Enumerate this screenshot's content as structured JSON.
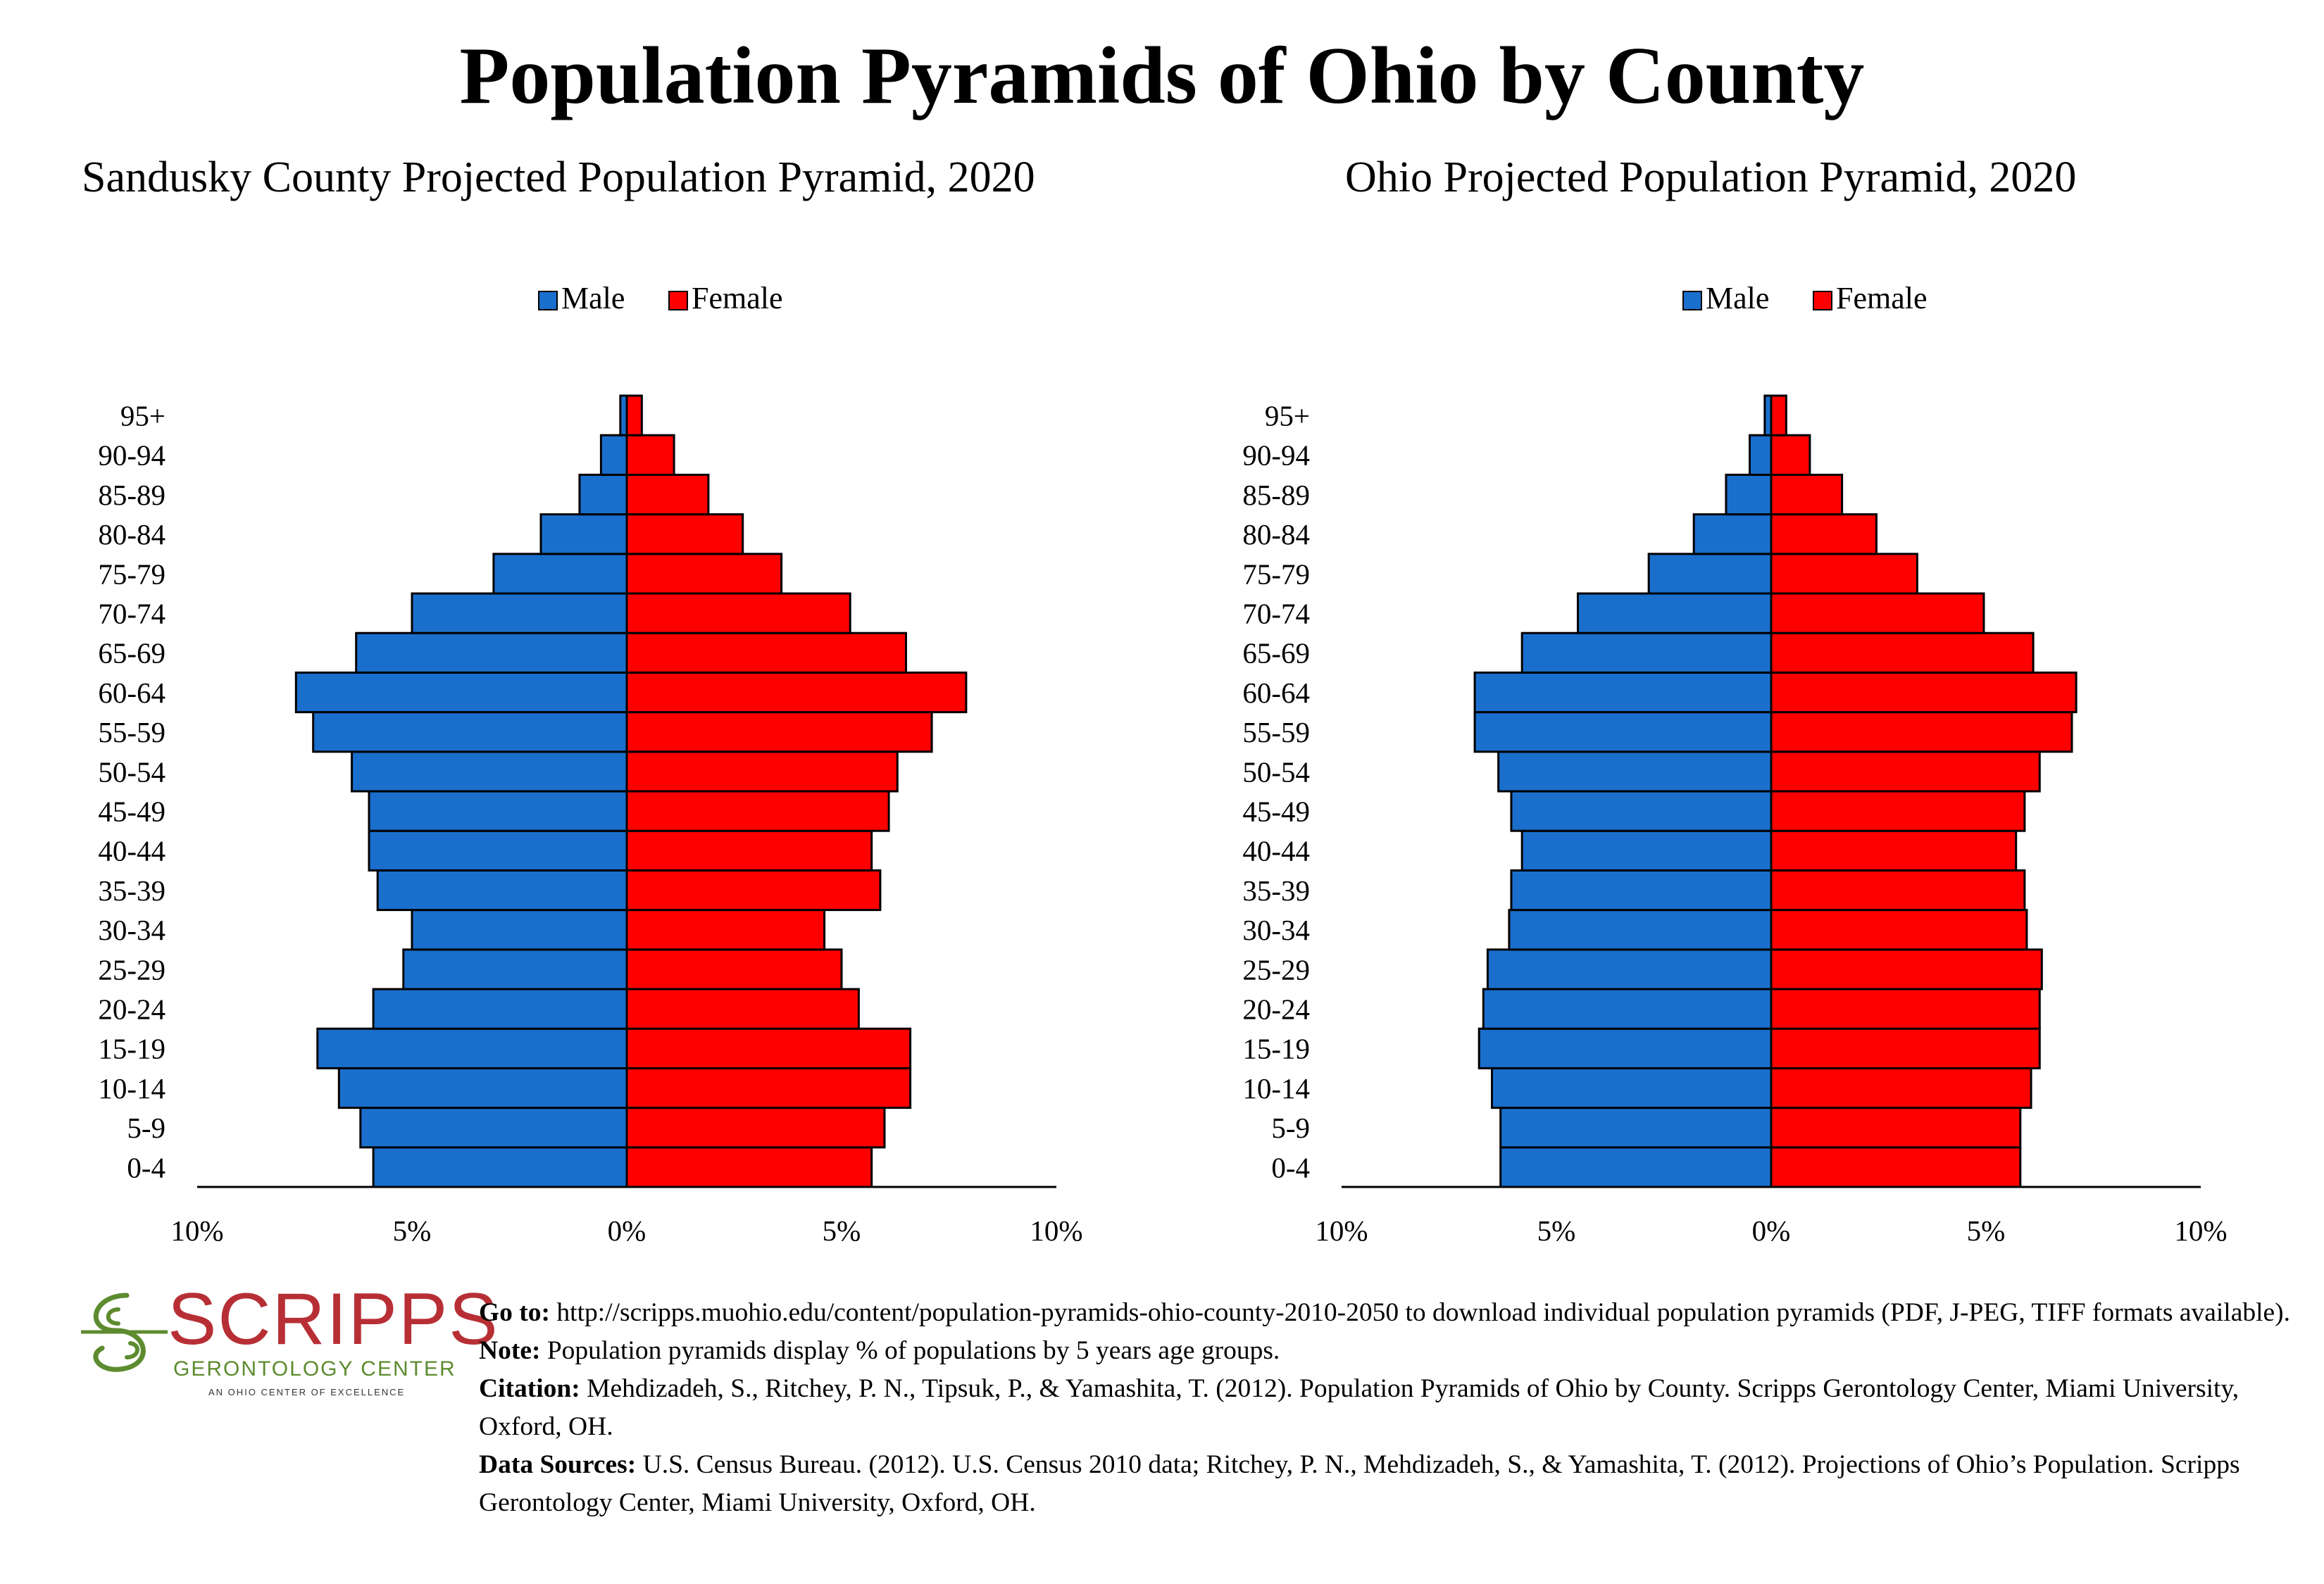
{
  "title": "Population Pyramids of Ohio by County",
  "colors": {
    "male": "#1a6fcd",
    "female": "#ff0000",
    "axis": "#000000"
  },
  "chart_data": [
    {
      "type": "bar",
      "orientation": "horizontal-pyramid",
      "title": "Sandusky County Projected Population Pyramid, 2020",
      "categories": [
        "0-4",
        "5-9",
        "10-14",
        "15-19",
        "20-24",
        "25-29",
        "30-34",
        "35-39",
        "40-44",
        "45-49",
        "50-54",
        "55-59",
        "60-64",
        "65-69",
        "70-74",
        "75-79",
        "80-84",
        "85-89",
        "90-94",
        "95+"
      ],
      "series": [
        {
          "name": "Male",
          "values": [
            5.9,
            6.2,
            6.7,
            7.2,
            5.9,
            5.2,
            5.0,
            5.8,
            6.0,
            6.0,
            6.4,
            7.3,
            7.7,
            6.3,
            5.0,
            3.1,
            2.0,
            1.1,
            0.6,
            0.15
          ]
        },
        {
          "name": "Female",
          "values": [
            5.7,
            6.0,
            6.6,
            6.6,
            5.4,
            5.0,
            4.6,
            5.9,
            5.7,
            6.1,
            6.3,
            7.1,
            7.9,
            6.5,
            5.2,
            3.6,
            2.7,
            1.9,
            1.1,
            0.35
          ]
        }
      ],
      "xlim": [
        -10,
        10
      ],
      "xticks": [
        "10%",
        "5%",
        "0%",
        "5%",
        "10%"
      ],
      "legend": [
        "Male",
        "Female"
      ],
      "legend_position": "top-center"
    },
    {
      "type": "bar",
      "orientation": "horizontal-pyramid",
      "title": "Ohio Projected Population Pyramid, 2020",
      "categories": [
        "0-4",
        "5-9",
        "10-14",
        "15-19",
        "20-24",
        "25-29",
        "30-34",
        "35-39",
        "40-44",
        "45-49",
        "50-54",
        "55-59",
        "60-64",
        "65-69",
        "70-74",
        "75-79",
        "80-84",
        "85-89",
        "90-94",
        "95+"
      ],
      "series": [
        {
          "name": "Male",
          "values": [
            6.3,
            6.3,
            6.5,
            6.8,
            6.7,
            6.6,
            6.1,
            6.05,
            5.8,
            6.05,
            6.35,
            6.9,
            6.9,
            5.8,
            4.5,
            2.85,
            1.8,
            1.05,
            0.5,
            0.15
          ]
        },
        {
          "name": "Female",
          "values": [
            5.8,
            5.8,
            6.05,
            6.25,
            6.25,
            6.3,
            5.95,
            5.9,
            5.7,
            5.9,
            6.25,
            7.0,
            7.1,
            6.1,
            4.95,
            3.4,
            2.45,
            1.65,
            0.9,
            0.35
          ]
        }
      ],
      "xlim": [
        -10,
        10
      ],
      "xticks": [
        "10%",
        "5%",
        "0%",
        "5%",
        "10%"
      ],
      "legend": [
        "Male",
        "Female"
      ],
      "legend_position": "top-center"
    }
  ],
  "logo": {
    "name": "SCRIPPS",
    "line2": "GERONTOLOGY CENTER",
    "line3": "AN OHIO CENTER OF EXCELLENCE"
  },
  "footer": {
    "goto_label": "Go to:",
    "goto_text": " http://scripps.muohio.edu/content/population-pyramids-ohio-county-2010-2050 to download individual population pyramids (PDF, J-PEG, TIFF formats available).",
    "note_label": "Note:",
    "note_text": " Population pyramids display % of populations by 5 years age groups.",
    "citation_label": "Citation:",
    "citation_text": " Mehdizadeh, S., Ritchey, P. N., Tipsuk, P., & Yamashita, T. (2012). Population Pyramids of Ohio by County. Scripps Gerontology Center, Miami University, Oxford, OH.",
    "sources_label": "Data Sources:",
    "sources_text": " U.S. Census Bureau. (2012). U.S. Census 2010 data; Ritchey, P. N., Mehdizadeh, S., & Yamashita, T. (2012). Projections of Ohio’s Population. Scripps Gerontology Center, Miami University, Oxford, OH."
  }
}
